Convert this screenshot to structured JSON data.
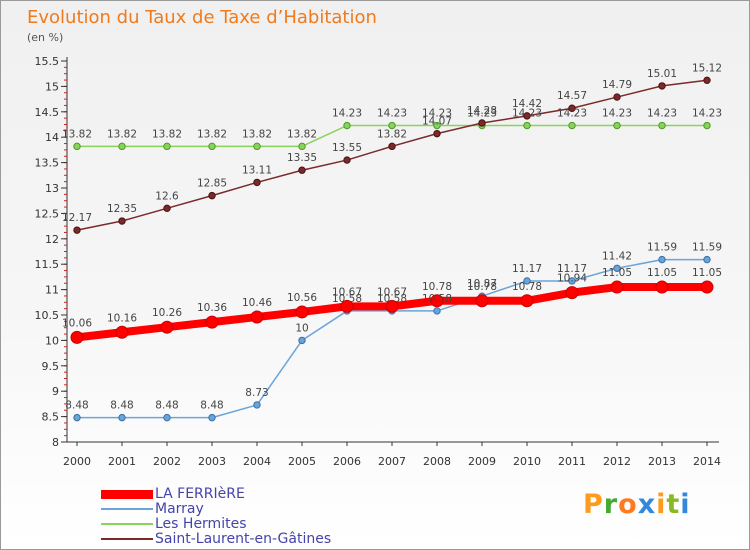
{
  "chart_data": {
    "type": "line",
    "title": "Evolution du Taux de Taxe d’Habitation",
    "ylabel": "(en %)",
    "x": [
      2000,
      2001,
      2002,
      2003,
      2004,
      2005,
      2006,
      2007,
      2008,
      2009,
      2010,
      2011,
      2012,
      2013,
      2014
    ],
    "ylim": [
      8,
      15.5
    ],
    "yticks": [
      "8",
      "8.5",
      "9",
      "9.5",
      "10",
      "10.5",
      "11",
      "11.5",
      "12",
      "12.5",
      "13",
      "13.5",
      "14",
      "14.5",
      "15",
      "15.5"
    ],
    "grid": false,
    "legend_position": "bottom-left",
    "series": [
      {
        "name": "LA FERRIèRE",
        "color": "#ff0000",
        "values": [
          10.06,
          10.16,
          10.26,
          10.36,
          10.46,
          10.56,
          10.67,
          10.67,
          10.78,
          10.78,
          10.78,
          10.94,
          11.05,
          11.05,
          11.05
        ],
        "labels": [
          "10.06",
          "10.16",
          "10.26",
          "10.36",
          "10.46",
          "10.56",
          "10.67",
          "10.67",
          "10.78",
          "10.78",
          "10.78",
          "10.94",
          "11.05",
          "11.05",
          "11.05"
        ]
      },
      {
        "name": "Marray",
        "color": "#6aa4d8",
        "values": [
          8.48,
          8.48,
          8.48,
          8.48,
          8.73,
          10,
          10.58,
          10.58,
          10.58,
          10.87,
          11.17,
          11.17,
          11.42,
          11.59,
          11.59
        ],
        "labels": [
          "8.48",
          "8.48",
          "8.48",
          "8.48",
          "8.73",
          "10",
          "10.58",
          "10.58",
          "10.58",
          "10.87",
          "11.17",
          "11.17",
          "11.42",
          "11.59",
          "11.59"
        ]
      },
      {
        "name": "Les Hermites",
        "color": "#88d45a",
        "values": [
          13.82,
          13.82,
          13.82,
          13.82,
          13.82,
          13.82,
          14.23,
          14.23,
          14.23,
          14.23,
          14.23,
          14.23,
          14.23,
          14.23,
          14.23
        ],
        "labels": [
          "13.82",
          "13.82",
          "13.82",
          "13.82",
          "13.82",
          "13.82",
          "14.23",
          "14.23",
          "14.23",
          "14.23",
          "14.23",
          "14.23",
          "14.23",
          "14.23",
          "14.23"
        ]
      },
      {
        "name": "Saint-Laurent-en-Gâtines",
        "color": "#7a2a2a",
        "values": [
          12.17,
          12.35,
          12.6,
          12.85,
          13.11,
          13.35,
          13.55,
          13.82,
          14.07,
          14.28,
          14.42,
          14.57,
          14.79,
          15.01,
          15.12
        ],
        "labels": [
          "12.17",
          "12.35",
          "12.6",
          "12.85",
          "13.11",
          "13.35",
          "13.55",
          "13.82",
          "14.07",
          "14.28",
          "14.42",
          "14.57",
          "14.79",
          "15.01",
          "15.12"
        ]
      }
    ]
  },
  "logo": {
    "letters": [
      "P",
      "r",
      "o",
      "x",
      "i",
      "t",
      "i"
    ],
    "colors": [
      "#ff9a1e",
      "#44aa33",
      "#ff7a1e",
      "#3388dd",
      "#ff9a1e",
      "#88bb22",
      "#3388dd"
    ]
  }
}
